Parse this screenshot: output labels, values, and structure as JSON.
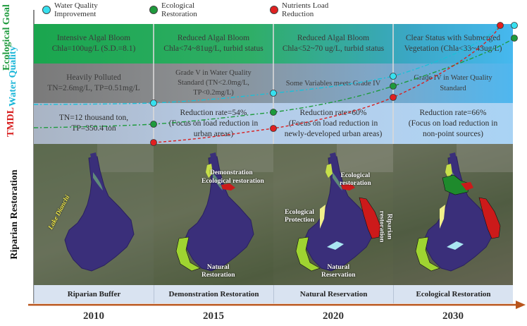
{
  "legend": [
    {
      "label": "Water Quality Improvement",
      "color": "#37e0ef"
    },
    {
      "label": "Ecological Restoration",
      "color": "#1e9a3c"
    },
    {
      "label": "Nutrients Load Reduction",
      "color": "#e02020"
    }
  ],
  "row_labels": {
    "goal_line1": "Ecological",
    "goal_line2": "Goal",
    "water_line1": "Water",
    "water_line2": "Quality",
    "tmdl": "TMDL",
    "riparian": "Riparian Restoration"
  },
  "years": [
    "2010",
    "2015",
    "2020",
    "2030"
  ],
  "ecological_goal": [
    {
      "line1": "Intensive Algal Bloom",
      "line2": "Chla=100ug/L (S.D.=8.1)"
    },
    {
      "line1": "Reduced Algal Bloom",
      "line2": "Chla<74~81ug/L, turbid status"
    },
    {
      "line1": "Reduced Algal Bloom",
      "line2": "Chla<52~70 ug/L, turbid status"
    },
    {
      "line1": "Clear Status with Submerged",
      "line2": "Vegetation (Chla<33~43ug/L)"
    }
  ],
  "water_quality": [
    {
      "line1": "Heavily Polluted",
      "line2": "TN=2.6mg/L,   TP=0.51mg/L",
      "line3": ""
    },
    {
      "line1": "Grade V in Water Quality",
      "line2": "Standard (TN<2.0mg/L,",
      "line3": "TP<0.2mg/L)"
    },
    {
      "line1": "Some Variables meets Grade IV",
      "line2": "",
      "line3": ""
    },
    {
      "line1": "Grade IV in Water Quality",
      "line2": "Standard",
      "line3": ""
    }
  ],
  "tmdl": [
    {
      "line1": "TN=12 thousand ton,",
      "line2": "TP=350.4 ton"
    },
    {
      "line1": "Reduction rate=54%",
      "line2": "(Focus on load reduction in",
      "line3": "urban areas)"
    },
    {
      "line1": "Reduction rate=60%",
      "line2": "(Focus on load reduction in",
      "line3": "newly-developed urban areas)"
    },
    {
      "line1": "Reduction rate=66%",
      "line2": "(Focus on load reduction in",
      "line3": "non-point sources)"
    }
  ],
  "map_labels": {
    "lake": "Lake Dianchi",
    "demo": "Demonstration",
    "eco_rest_2015": "Ecological restoration",
    "natural_rest_2015_1": "Natural",
    "natural_rest_2015_2": "Restoration",
    "eco_rest_2020_1": "Ecological",
    "eco_rest_2020_2": "restoration",
    "eco_prot_1": "Ecological",
    "eco_prot_2": "Protection",
    "riparian_rest_1": "Riparian",
    "riparian_rest_2": "restoration",
    "natural_res_1": "Natural",
    "natural_res_2": "Reservation"
  },
  "captions": [
    "Riparian Buffer",
    "Demonstration Restoration",
    "Natural Reservation",
    "Ecological Restoration"
  ]
}
